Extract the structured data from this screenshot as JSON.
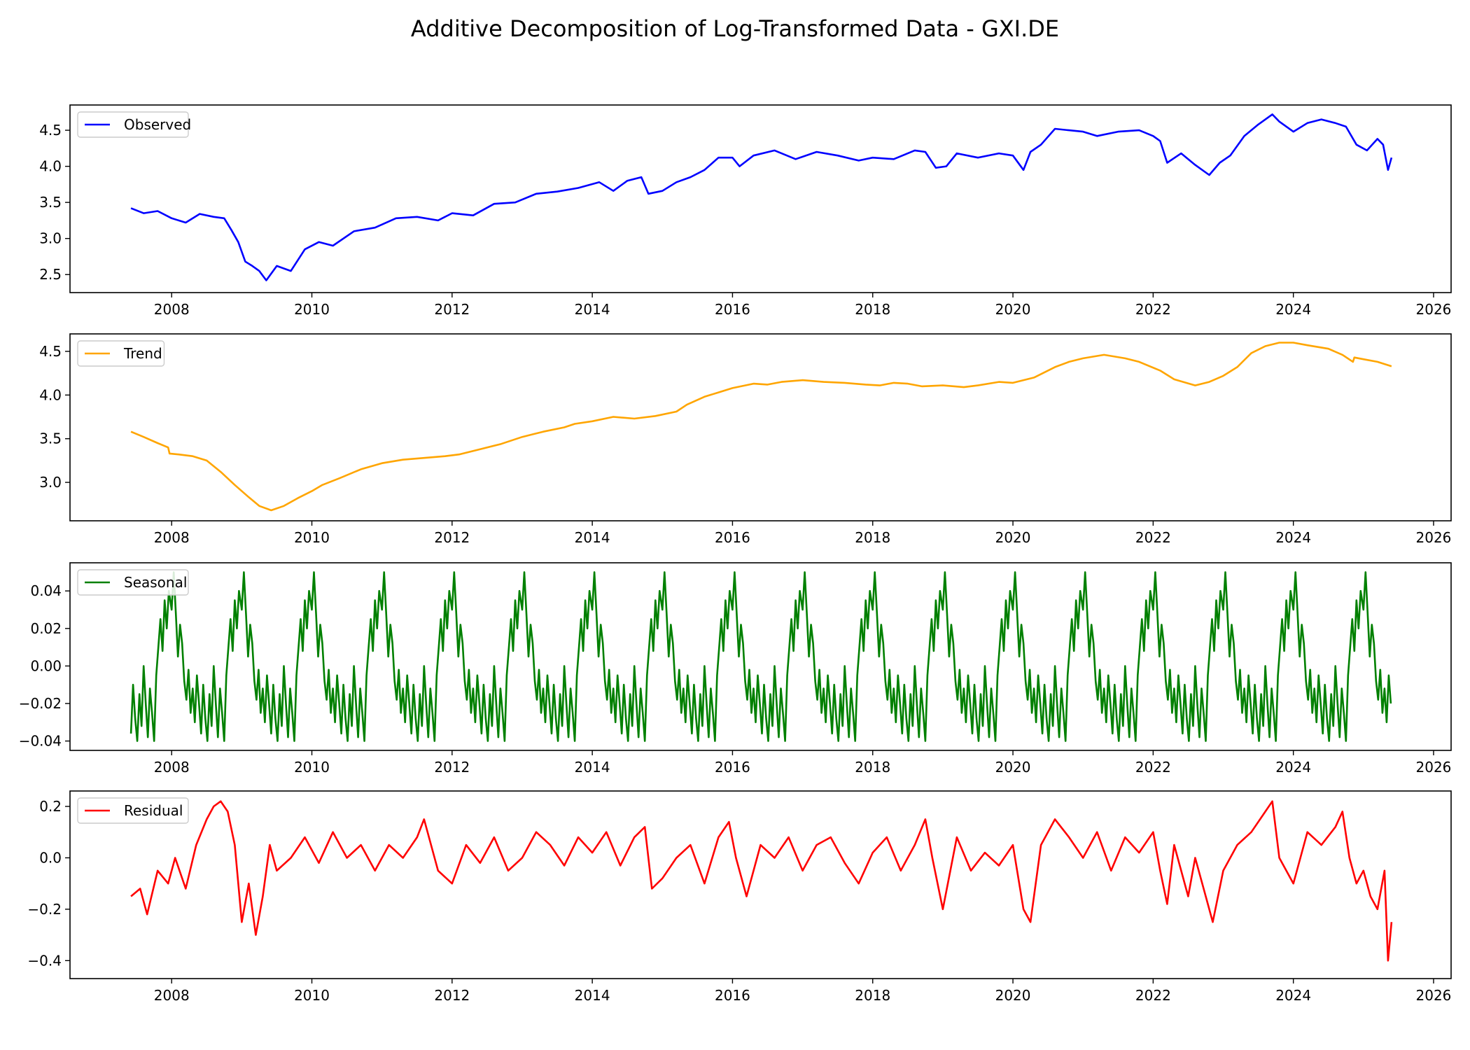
{
  "figure": {
    "title": "Additive Decomposition of Log-Transformed Data - GXI.DE"
  },
  "chart_data": [
    {
      "type": "line",
      "key": "observed",
      "title": "",
      "xlabel": "",
      "ylabel": "",
      "legend": "upper left",
      "series": [
        {
          "name": "Observed",
          "color": "#0000ff",
          "x": [
            2007.42,
            2007.6,
            2007.8,
            2008.0,
            2008.2,
            2008.4,
            2008.6,
            2008.75,
            2008.85,
            2008.95,
            2009.05,
            2009.15,
            2009.25,
            2009.35,
            2009.5,
            2009.7,
            2009.9,
            2010.1,
            2010.3,
            2010.6,
            2010.9,
            2011.2,
            2011.5,
            2011.8,
            2012.0,
            2012.3,
            2012.6,
            2012.9,
            2013.2,
            2013.5,
            2013.8,
            2014.1,
            2014.3,
            2014.5,
            2014.7,
            2014.8,
            2015.0,
            2015.2,
            2015.4,
            2015.6,
            2015.8,
            2016.0,
            2016.1,
            2016.3,
            2016.6,
            2016.9,
            2017.2,
            2017.5,
            2017.8,
            2018.0,
            2018.3,
            2018.6,
            2018.75,
            2018.9,
            2019.05,
            2019.2,
            2019.5,
            2019.8,
            2020.0,
            2020.15,
            2020.25,
            2020.4,
            2020.6,
            2020.8,
            2021.0,
            2021.2,
            2021.5,
            2021.8,
            2022.0,
            2022.1,
            2022.2,
            2022.4,
            2022.6,
            2022.8,
            2022.95,
            2023.1,
            2023.3,
            2023.5,
            2023.7,
            2023.8,
            2024.0,
            2024.2,
            2024.4,
            2024.6,
            2024.75,
            2024.9,
            2025.05,
            2025.2,
            2025.28,
            2025.35,
            2025.4
          ],
          "y": [
            3.42,
            3.35,
            3.38,
            3.28,
            3.22,
            3.34,
            3.3,
            3.28,
            3.12,
            2.95,
            2.68,
            2.62,
            2.55,
            2.42,
            2.62,
            2.55,
            2.85,
            2.95,
            2.9,
            3.1,
            3.15,
            3.28,
            3.3,
            3.25,
            3.35,
            3.32,
            3.48,
            3.5,
            3.62,
            3.65,
            3.7,
            3.78,
            3.66,
            3.8,
            3.85,
            3.62,
            3.66,
            3.78,
            3.85,
            3.95,
            4.12,
            4.12,
            4.0,
            4.15,
            4.22,
            4.1,
            4.2,
            4.15,
            4.08,
            4.12,
            4.1,
            4.22,
            4.2,
            3.98,
            4.0,
            4.18,
            4.12,
            4.18,
            4.15,
            3.95,
            4.2,
            4.3,
            4.52,
            4.5,
            4.48,
            4.42,
            4.48,
            4.5,
            4.42,
            4.35,
            4.05,
            4.18,
            4.02,
            3.88,
            4.05,
            4.15,
            4.42,
            4.58,
            4.72,
            4.62,
            4.48,
            4.6,
            4.65,
            4.6,
            4.55,
            4.3,
            4.22,
            4.38,
            4.3,
            3.95,
            4.12
          ]
        }
      ],
      "xlim": [
        2006.55,
        2026.25
      ],
      "ylim": [
        2.25,
        4.85
      ],
      "x_ticks": [
        "2008",
        "2010",
        "2012",
        "2014",
        "2016",
        "2018",
        "2020",
        "2022",
        "2024",
        "2026"
      ],
      "y_ticks": [
        "2.5",
        "3.0",
        "3.5",
        "4.0",
        "4.5"
      ]
    },
    {
      "type": "line",
      "key": "trend",
      "title": "",
      "xlabel": "",
      "ylabel": "",
      "legend": "upper left",
      "series": [
        {
          "name": "Trend",
          "color": "#ffa500",
          "x": [
            2007.42,
            2007.6,
            2007.8,
            2007.95,
            2007.97,
            2008.1,
            2008.3,
            2008.5,
            2008.7,
            2008.9,
            2009.1,
            2009.25,
            2009.42,
            2009.6,
            2009.8,
            2010.0,
            2010.15,
            2010.4,
            2010.7,
            2011.0,
            2011.3,
            2011.6,
            2011.9,
            2012.1,
            2012.4,
            2012.7,
            2013.0,
            2013.3,
            2013.6,
            2013.75,
            2014.0,
            2014.3,
            2014.6,
            2014.9,
            2015.2,
            2015.35,
            2015.6,
            2015.8,
            2016.0,
            2016.3,
            2016.5,
            2016.7,
            2017.0,
            2017.3,
            2017.6,
            2017.9,
            2018.1,
            2018.3,
            2018.5,
            2018.7,
            2019.0,
            2019.3,
            2019.5,
            2019.8,
            2020.0,
            2020.3,
            2020.6,
            2020.8,
            2021.0,
            2021.3,
            2021.6,
            2021.8,
            2022.1,
            2022.3,
            2022.6,
            2022.8,
            2023.0,
            2023.2,
            2023.4,
            2023.6,
            2023.8,
            2024.0,
            2024.2,
            2024.5,
            2024.7,
            2024.85,
            2024.87,
            2025.0,
            2025.2,
            2025.4
          ],
          "y": [
            3.58,
            3.52,
            3.45,
            3.4,
            3.33,
            3.32,
            3.3,
            3.25,
            3.12,
            2.97,
            2.83,
            2.73,
            2.68,
            2.73,
            2.82,
            2.9,
            2.97,
            3.05,
            3.15,
            3.22,
            3.26,
            3.28,
            3.3,
            3.32,
            3.38,
            3.44,
            3.52,
            3.58,
            3.63,
            3.67,
            3.7,
            3.75,
            3.73,
            3.76,
            3.81,
            3.89,
            3.98,
            4.03,
            4.08,
            4.13,
            4.12,
            4.15,
            4.17,
            4.15,
            4.14,
            4.12,
            4.11,
            4.14,
            4.13,
            4.1,
            4.11,
            4.09,
            4.11,
            4.15,
            4.14,
            4.2,
            4.32,
            4.38,
            4.42,
            4.46,
            4.42,
            4.38,
            4.28,
            4.18,
            4.11,
            4.15,
            4.22,
            4.32,
            4.48,
            4.56,
            4.6,
            4.6,
            4.57,
            4.53,
            4.46,
            4.38,
            4.43,
            4.41,
            4.38,
            4.33
          ]
        }
      ],
      "xlim": [
        2006.55,
        2026.25
      ],
      "ylim": [
        2.56,
        4.7
      ],
      "x_ticks": [
        "2008",
        "2010",
        "2012",
        "2014",
        "2016",
        "2018",
        "2020",
        "2022",
        "2024",
        "2026"
      ],
      "y_ticks": [
        "3.0",
        "3.5",
        "4.0",
        "4.5"
      ]
    },
    {
      "type": "line",
      "key": "seasonal",
      "title": "",
      "xlabel": "",
      "ylabel": "",
      "legend": "upper left",
      "series": [
        {
          "name": "Seasonal",
          "color": "#008000",
          "period": 1.0,
          "x_start": 2007.42,
          "x_end": 2025.4,
          "cycle_phase": [
            0.0,
            0.03,
            0.06,
            0.09,
            0.12,
            0.15,
            0.18,
            0.21,
            0.24,
            0.27,
            0.3,
            0.33,
            0.36,
            0.39,
            0.42,
            0.45,
            0.48,
            0.51,
            0.54,
            0.57,
            0.6,
            0.63,
            0.66,
            0.69,
            0.72,
            0.75,
            0.78,
            0.81,
            0.84,
            0.87,
            0.9,
            0.93,
            0.96,
            1.0
          ],
          "cycle_values": [
            0.03,
            0.05,
            0.028,
            0.005,
            0.022,
            0.012,
            -0.008,
            -0.018,
            -0.002,
            -0.025,
            -0.012,
            -0.03,
            -0.005,
            -0.02,
            -0.036,
            -0.01,
            -0.028,
            -0.04,
            -0.015,
            -0.032,
            0.0,
            -0.02,
            -0.038,
            -0.012,
            -0.025,
            -0.04,
            -0.005,
            0.01,
            0.025,
            0.008,
            0.035,
            0.02,
            0.04,
            0.03
          ]
        }
      ],
      "xlim": [
        2006.55,
        2026.25
      ],
      "ylim": [
        -0.045,
        0.055
      ],
      "x_ticks": [
        "2008",
        "2010",
        "2012",
        "2014",
        "2016",
        "2018",
        "2020",
        "2022",
        "2024",
        "2026"
      ],
      "y_ticks": [
        "−0.04",
        "−0.02",
        "0.00",
        "0.02",
        "0.04"
      ]
    },
    {
      "type": "line",
      "key": "residual",
      "title": "",
      "xlabel": "",
      "ylabel": "",
      "legend": "upper left",
      "series": [
        {
          "name": "Residual",
          "color": "#ff0000",
          "x": [
            2007.42,
            2007.55,
            2007.65,
            2007.8,
            2007.95,
            2008.05,
            2008.2,
            2008.35,
            2008.5,
            2008.6,
            2008.7,
            2008.8,
            2008.9,
            2009.0,
            2009.1,
            2009.2,
            2009.3,
            2009.4,
            2009.5,
            2009.7,
            2009.9,
            2010.1,
            2010.3,
            2010.5,
            2010.7,
            2010.9,
            2011.1,
            2011.3,
            2011.5,
            2011.6,
            2011.8,
            2012.0,
            2012.2,
            2012.4,
            2012.6,
            2012.8,
            2013.0,
            2013.2,
            2013.4,
            2013.6,
            2013.8,
            2014.0,
            2014.2,
            2014.4,
            2014.6,
            2014.75,
            2014.85,
            2015.0,
            2015.2,
            2015.4,
            2015.6,
            2015.8,
            2015.95,
            2016.05,
            2016.2,
            2016.4,
            2016.6,
            2016.8,
            2017.0,
            2017.2,
            2017.4,
            2017.6,
            2017.8,
            2018.0,
            2018.2,
            2018.4,
            2018.6,
            2018.75,
            2018.85,
            2019.0,
            2019.2,
            2019.4,
            2019.6,
            2019.8,
            2020.0,
            2020.15,
            2020.25,
            2020.4,
            2020.6,
            2020.8,
            2021.0,
            2021.2,
            2021.4,
            2021.6,
            2021.8,
            2022.0,
            2022.1,
            2022.2,
            2022.3,
            2022.5,
            2022.6,
            2022.75,
            2022.85,
            2023.0,
            2023.2,
            2023.4,
            2023.6,
            2023.7,
            2023.8,
            2024.0,
            2024.2,
            2024.4,
            2024.6,
            2024.7,
            2024.8,
            2024.9,
            2025.0,
            2025.1,
            2025.2,
            2025.3,
            2025.35,
            2025.4
          ],
          "y": [
            -0.15,
            -0.12,
            -0.22,
            -0.05,
            -0.1,
            0.0,
            -0.12,
            0.05,
            0.15,
            0.2,
            0.22,
            0.18,
            0.05,
            -0.25,
            -0.1,
            -0.3,
            -0.15,
            0.05,
            -0.05,
            0.0,
            0.08,
            -0.02,
            0.1,
            0.0,
            0.05,
            -0.05,
            0.05,
            0.0,
            0.08,
            0.15,
            -0.05,
            -0.1,
            0.05,
            -0.02,
            0.08,
            -0.05,
            0.0,
            0.1,
            0.05,
            -0.03,
            0.08,
            0.02,
            0.1,
            -0.03,
            0.08,
            0.12,
            -0.12,
            -0.08,
            0.0,
            0.05,
            -0.1,
            0.08,
            0.14,
            0.0,
            -0.15,
            0.05,
            0.0,
            0.08,
            -0.05,
            0.05,
            0.08,
            -0.02,
            -0.1,
            0.02,
            0.08,
            -0.05,
            0.05,
            0.15,
            0.0,
            -0.2,
            0.08,
            -0.05,
            0.02,
            -0.03,
            0.05,
            -0.2,
            -0.25,
            0.05,
            0.15,
            0.08,
            0.0,
            0.1,
            -0.05,
            0.08,
            0.02,
            0.1,
            -0.05,
            -0.18,
            0.05,
            -0.15,
            0.0,
            -0.15,
            -0.25,
            -0.05,
            0.05,
            0.1,
            0.18,
            0.22,
            0.0,
            -0.1,
            0.1,
            0.05,
            0.12,
            0.18,
            0.0,
            -0.1,
            -0.05,
            -0.15,
            -0.2,
            -0.05,
            -0.4,
            -0.25
          ]
        }
      ],
      "xlim": [
        2006.55,
        2026.25
      ],
      "ylim": [
        -0.47,
        0.26
      ],
      "x_ticks": [
        "2008",
        "2010",
        "2012",
        "2014",
        "2016",
        "2018",
        "2020",
        "2022",
        "2024",
        "2026"
      ],
      "y_ticks": [
        "−0.4",
        "−0.2",
        "0.0",
        "0.2"
      ]
    }
  ]
}
